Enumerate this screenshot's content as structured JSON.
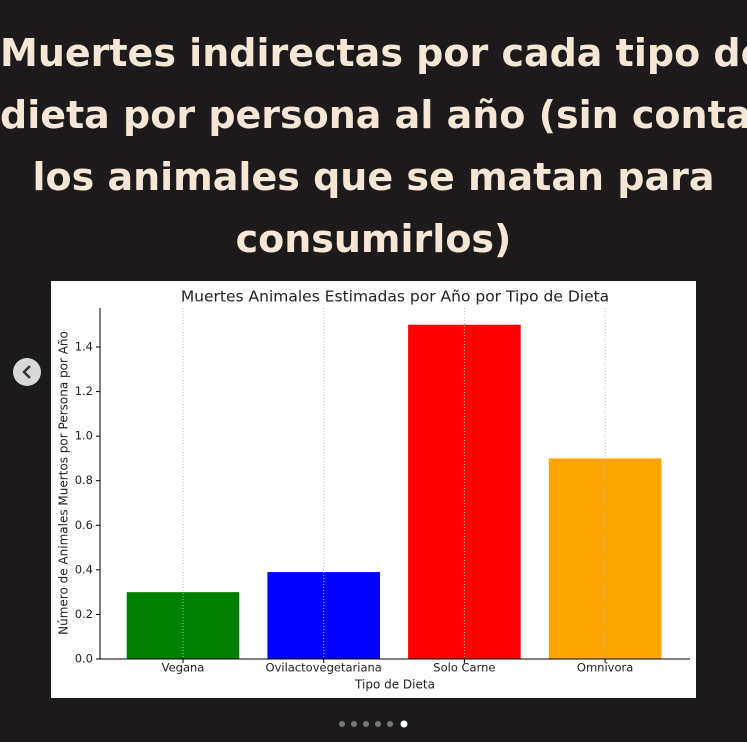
{
  "header": {
    "title_lines": [
      "Muertes indirectas por cada tipo de",
      "dieta por persona al año (sin contar",
      "los animales que se matan para",
      "consumirlos)"
    ]
  },
  "chart_data": {
    "type": "bar",
    "title": "Muertes Animales Estimadas por Año por Tipo de Dieta",
    "x_label": "Tipo de Dieta",
    "y_label": "Número de Animales Muertos por Persona por Año",
    "categories": [
      "Vegana",
      "Ovilactovegetariana",
      "Solo Carne",
      "Omnívora"
    ],
    "values": [
      0.3,
      0.39,
      1.5,
      0.9
    ],
    "colors": [
      "#008000",
      "#0000ff",
      "#ff0000",
      "#ffa500"
    ],
    "ylim": [
      0,
      1.575
    ],
    "yticks": [
      {
        "value": 0,
        "label": "0.0"
      },
      {
        "value": 0.2,
        "label": "0.2"
      },
      {
        "value": 0.4,
        "label": "0.4"
      },
      {
        "value": 0.6,
        "label": "0.6"
      },
      {
        "value": 0.8,
        "label": "0.8"
      },
      {
        "value": 1.0,
        "label": "1.0"
      },
      {
        "value": 1.2,
        "label": "1.2"
      },
      {
        "value": 1.4,
        "label": "1.4"
      }
    ],
    "grid": "x"
  }
}
